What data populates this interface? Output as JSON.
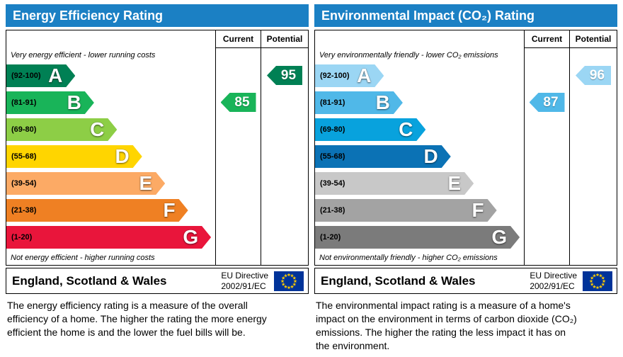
{
  "chart_data": [
    {
      "type": "bar",
      "title": "Energy Efficiency Rating",
      "columns": {
        "current": "Current",
        "potential": "Potential"
      },
      "top_note": "Very energy efficient - lower running costs",
      "bottom_note": "Not energy efficient - higher running costs",
      "bands": [
        {
          "letter": "A",
          "range": "(92-100)",
          "min": 92,
          "max": 100,
          "color": "#008054",
          "style": "width:33%;background:#008054"
        },
        {
          "letter": "B",
          "range": "(81-91)",
          "min": 81,
          "max": 91,
          "color": "#19b459",
          "style": "width:42%;background:#19b459"
        },
        {
          "letter": "C",
          "range": "(69-80)",
          "min": 69,
          "max": 80,
          "color": "#8dce46",
          "style": "width:53%;background:#8dce46"
        },
        {
          "letter": "D",
          "range": "(55-68)",
          "min": 55,
          "max": 68,
          "color": "#ffd500",
          "style": "width:65%;background:#ffd500"
        },
        {
          "letter": "E",
          "range": "(39-54)",
          "min": 39,
          "max": 54,
          "color": "#fcaa65",
          "style": "width:76%;background:#fcaa65"
        },
        {
          "letter": "F",
          "range": "(21-38)",
          "min": 21,
          "max": 38,
          "color": "#ef8023",
          "style": "width:87%;background:#ef8023"
        },
        {
          "letter": "G",
          "range": "(1-20)",
          "min": 1,
          "max": 20,
          "color": "#e9153b",
          "style": "width:98%;background:#e9153b"
        }
      ],
      "current": {
        "value": "85",
        "band": "B",
        "row": "1",
        "color": "#19b459",
        "style": "background:#19b459"
      },
      "potential": {
        "value": "95",
        "band": "A",
        "row": "0",
        "color": "#008054",
        "style": "background:#008054"
      },
      "footer": {
        "region": "England, Scotland & Wales",
        "directive_line1": "EU Directive",
        "directive_line2": "2002/91/EC"
      },
      "description": "The energy efficiency rating is a measure of the overall efficiency of a home. The higher the rating the more energy efficient the home is and the lower the fuel bills will be."
    },
    {
      "type": "bar",
      "title": "Environmental Impact (CO₂) Rating",
      "columns": {
        "current": "Current",
        "potential": "Potential"
      },
      "top_note": "Very environmentally friendly - lower CO₂ emissions",
      "bottom_note": "Not environmentally friendly - higher CO₂ emissions",
      "bands": [
        {
          "letter": "A",
          "range": "(92-100)",
          "min": 92,
          "max": 100,
          "color": "#9bd6f4",
          "style": "width:33%;background:#9bd6f4"
        },
        {
          "letter": "B",
          "range": "(81-91)",
          "min": 81,
          "max": 91,
          "color": "#50b8e8",
          "style": "width:42%;background:#50b8e8"
        },
        {
          "letter": "C",
          "range": "(69-80)",
          "min": 69,
          "max": 80,
          "color": "#08a2dd",
          "style": "width:53%;background:#08a2dd"
        },
        {
          "letter": "D",
          "range": "(55-68)",
          "min": 55,
          "max": 68,
          "color": "#0b72b5",
          "style": "width:65%;background:#0b72b5"
        },
        {
          "letter": "E",
          "range": "(39-54)",
          "min": 39,
          "max": 54,
          "color": "#c8c8c8",
          "style": "width:76%;background:#c8c8c8"
        },
        {
          "letter": "F",
          "range": "(21-38)",
          "min": 21,
          "max": 38,
          "color": "#a3a3a3",
          "style": "width:87%;background:#a3a3a3"
        },
        {
          "letter": "G",
          "range": "(1-20)",
          "min": 1,
          "max": 20,
          "color": "#7b7b7b",
          "style": "width:98%;background:#7b7b7b"
        }
      ],
      "current": {
        "value": "87",
        "band": "B",
        "row": "1",
        "color": "#50b8e8",
        "style": "background:#50b8e8"
      },
      "potential": {
        "value": "96",
        "band": "A",
        "row": "0",
        "color": "#9bd6f4",
        "style": "background:#9bd6f4"
      },
      "footer": {
        "region": "England, Scotland & Wales",
        "directive_line1": "EU Directive",
        "directive_line2": "2002/91/EC"
      },
      "description": "The environmental impact rating is a measure of a home's impact on the environment in terms of carbon dioxide (CO₂) emissions. The higher the rating the less impact it has on the environment."
    }
  ]
}
